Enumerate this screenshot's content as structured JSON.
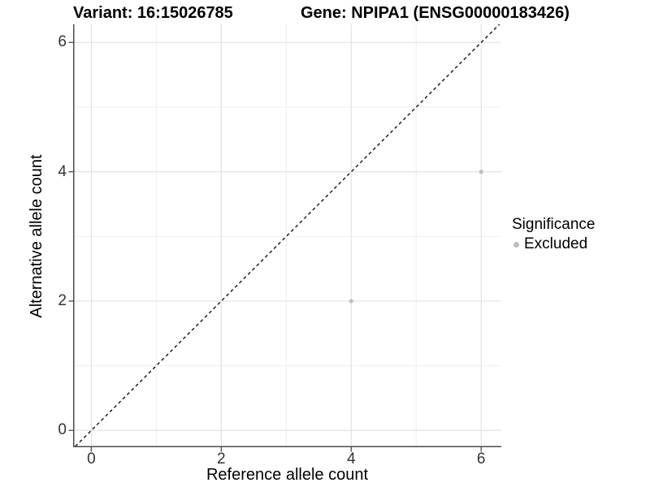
{
  "header": {
    "variant_title": "Variant: 16:15026785",
    "gene_title": "Gene: NPIPA1 (ENSG00000183426)"
  },
  "legend": {
    "title": "Significance",
    "items": [
      {
        "label": "Excluded",
        "color": "#bdbdbd"
      }
    ]
  },
  "chart_data": {
    "type": "scatter",
    "title": "Variant: 16:15026785  /  Gene: NPIPA1 (ENSG00000183426)",
    "xlabel": "Reference allele count",
    "ylabel": "Alternative allele count",
    "xlim": [
      -0.28,
      6.31
    ],
    "ylim": [
      -0.26,
      6.28
    ],
    "xticks": [
      0,
      2,
      4,
      6
    ],
    "yticks": [
      0,
      2,
      4,
      6
    ],
    "xminor": [
      1,
      3,
      5
    ],
    "yminor": [
      1,
      3,
      5
    ],
    "grid": true,
    "legend_position": "right",
    "series": [
      {
        "name": "Excluded",
        "color": "#bdbdbd",
        "points": [
          {
            "x": 4,
            "y": 2
          },
          {
            "x": 6,
            "y": 4
          }
        ]
      }
    ],
    "reference_line": {
      "type": "identity",
      "label": "y = x",
      "style": "dashed",
      "color": "#111111"
    }
  },
  "colors": {
    "background": "#ffffff",
    "grid_major": "#e2e2e2",
    "grid_minor": "#efefef",
    "axis_line": "#4a4a4a",
    "tick_text": "#333333",
    "point": "#bdbdbd"
  }
}
